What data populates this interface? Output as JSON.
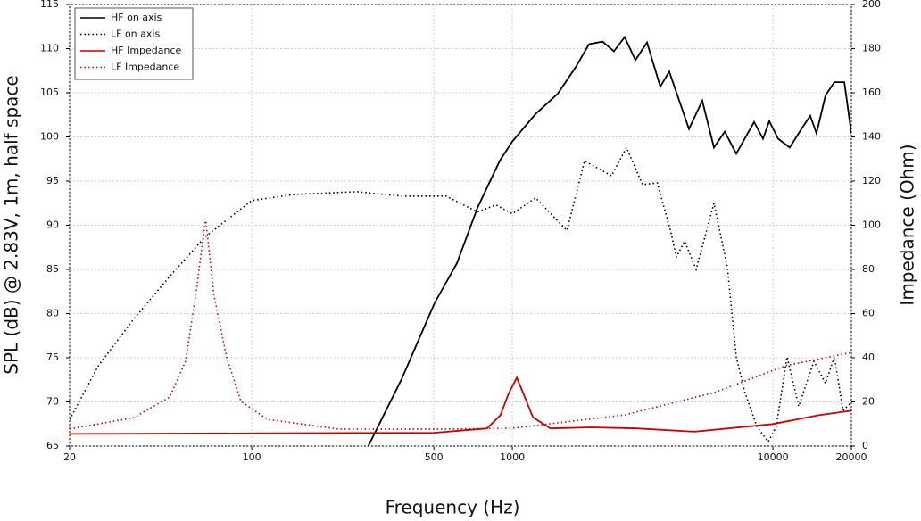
{
  "chart_data": {
    "type": "line",
    "xlabel": "Frequency (Hz)",
    "ylabel": "SPL (dB) @ 2.83V, 1m, half space",
    "y2label": "Impedance (Ohm)",
    "xscale": "log",
    "grid": true,
    "legend": "upper left",
    "xlim": [
      20,
      20000
    ],
    "xticks": [
      20,
      100,
      500,
      1000,
      10000,
      20000
    ],
    "ylim": [
      65,
      115
    ],
    "yticks": [
      65,
      70,
      75,
      80,
      85,
      90,
      95,
      100,
      105,
      110,
      115
    ],
    "y2lim": [
      0,
      200
    ],
    "y2ticks": [
      0,
      20,
      40,
      60,
      80,
      100,
      120,
      140,
      160,
      180,
      200
    ],
    "series": [
      {
        "name": "HF on axis",
        "color": "#000000",
        "style": "solid",
        "x": [
          280,
          376,
          503,
          613,
          735,
          895,
          1000,
          1228,
          1494,
          1750,
          1968,
          2218,
          2454,
          2698,
          2966,
          3286,
          3698,
          4000,
          4761,
          5357,
          5940,
          6530,
          7230,
          8470,
          9160,
          9680,
          10470,
          11600,
          12860,
          13900,
          14690,
          15910,
          17210,
          18790,
          20000
        ],
        "values": [
          65,
          72.6,
          81.2,
          85.7,
          92,
          97.3,
          99.5,
          102.6,
          104.9,
          107.9,
          110.5,
          110.8,
          109.7,
          111.3,
          108.7,
          110.7,
          105.7,
          107.4,
          100.9,
          104.1,
          98.8,
          100.6,
          98.1,
          101.7,
          99.8,
          101.8,
          99.8,
          98.8,
          100.9,
          102.4,
          100.4,
          104.7,
          106.2,
          106.2,
          100.4
        ]
      },
      {
        "name": "LF on axis",
        "color": "#000000",
        "style": "dotted",
        "x": [
          20,
          25.8,
          35.3,
          48.4,
          66.3,
          100,
          146,
          253,
          376,
          557,
          735,
          865,
          1000,
          1228,
          1620,
          1893,
          2400,
          2742,
          3160,
          3600,
          4060,
          4260,
          4580,
          5070,
          5940,
          6690,
          7230,
          7800,
          8680,
          9590,
          10300,
          11330,
          12560,
          14360,
          15910,
          17210,
          18580,
          20000
        ],
        "values": [
          68,
          74.1,
          79.4,
          84.2,
          88.7,
          92.8,
          93.5,
          93.8,
          93.3,
          93.3,
          91.5,
          92.3,
          91.3,
          93.1,
          89.4,
          97.3,
          95.6,
          98.8,
          94.6,
          94.8,
          89.2,
          86.4,
          88.2,
          85,
          92.5,
          85.2,
          75.1,
          71.1,
          67.2,
          65.5,
          67.2,
          75.1,
          69.5,
          74.6,
          72.1,
          75.1,
          69,
          70
        ]
      },
      {
        "name": "HF Impedance",
        "color": "#cc0000",
        "style": "solid",
        "axis": "y2",
        "x": [
          20,
          500,
          800,
          900,
          970,
          1040,
          1100,
          1200,
          1400,
          2000,
          3000,
          5000,
          10000,
          15000,
          20000
        ],
        "values": [
          5.5,
          6,
          8,
          14,
          24,
          31,
          24,
          13,
          8,
          8.5,
          8,
          6.5,
          10,
          14,
          16
        ]
      },
      {
        "name": "LF Impedance",
        "color": "#cc0000",
        "style": "dotted",
        "axis": "y2",
        "x": [
          20,
          35.3,
          48.4,
          55.7,
          61,
          66.5,
          71.5,
          80,
          91,
          115,
          215,
          557,
          1000,
          2698,
          5940,
          11200,
          20000
        ],
        "values": [
          7.7,
          12.9,
          22.2,
          38.4,
          68.7,
          103,
          68.7,
          40.4,
          20.2,
          12.1,
          7.7,
          7.7,
          8.1,
          14.1,
          24.2,
          36.4,
          42.4
        ]
      }
    ]
  }
}
